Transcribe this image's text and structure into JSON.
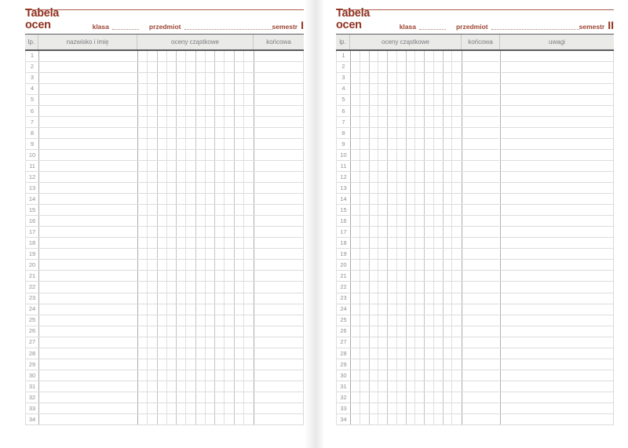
{
  "accent_color": "#913322",
  "header_bg_color": "#eaeae8",
  "pages": [
    {
      "name": "semester-1-page",
      "title": "Tabela ocen",
      "class_label": "klasa",
      "subject_label": "przedmiot",
      "semester_label": "semestr",
      "semester_value": "I",
      "columns": {
        "lp": "lp.",
        "name": "nazwisko i imię",
        "grades": "oceny cząstkowe",
        "final": "końcowa"
      },
      "grade_subcolumns": 12,
      "row_numbers": [
        1,
        2,
        3,
        4,
        5,
        6,
        7,
        8,
        9,
        10,
        11,
        12,
        13,
        14,
        15,
        16,
        17,
        18,
        19,
        20,
        21,
        22,
        23,
        24,
        25,
        26,
        27,
        28,
        29,
        30,
        31,
        32,
        33,
        34
      ]
    },
    {
      "name": "semester-2-page",
      "title": "Tabela ocen",
      "class_label": "klasa",
      "subject_label": "przedmiot",
      "semester_label": "semestr",
      "semester_value": "II",
      "columns": {
        "lp": "lp.",
        "grades": "oceny cząstkowe",
        "final": "końcowa",
        "remarks": "uwagi"
      },
      "grade_subcolumns": 12,
      "row_numbers": [
        1,
        2,
        3,
        4,
        5,
        6,
        7,
        8,
        9,
        10,
        11,
        12,
        13,
        14,
        15,
        16,
        17,
        18,
        19,
        20,
        21,
        22,
        23,
        24,
        25,
        26,
        27,
        28,
        29,
        30,
        31,
        32,
        33,
        34
      ]
    }
  ]
}
